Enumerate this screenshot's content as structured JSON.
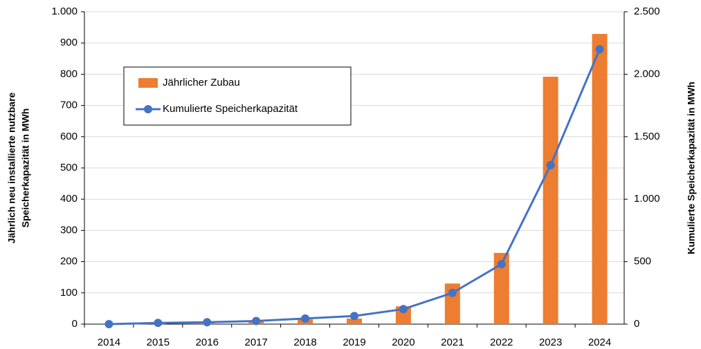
{
  "chart_data": {
    "type": "bar_line",
    "categories": [
      "2014",
      "2015",
      "2016",
      "2017",
      "2018",
      "2019",
      "2020",
      "2021",
      "2022",
      "2023",
      "2024"
    ],
    "series": [
      {
        "name": "Jährlicher Zubau",
        "color": "#ed7d31",
        "type": "bar",
        "axis": "y",
        "values": [
          0,
          2,
          5,
          10,
          15,
          18,
          57,
          130,
          228,
          792,
          929
        ]
      },
      {
        "name": "Kumulierte Speicherkapazität",
        "color": "#4472c4",
        "type": "line",
        "axis": "y2",
        "values": [
          0,
          10,
          15,
          25,
          45,
          65,
          120,
          250,
          480,
          1272,
          2200
        ]
      }
    ],
    "ylabel": [
      "Jährlich neu installierte nutzbare",
      "Speicherkapazität in MWh"
    ],
    "y2label": "Kumulierte Speicherkapazität in MWh",
    "ylim": [
      0,
      1000
    ],
    "yticks": [
      0,
      100,
      200,
      300,
      400,
      500,
      600,
      700,
      800,
      900,
      {
        "value": 1000,
        "label": "1.000"
      }
    ],
    "y2lim": [
      0,
      2500
    ],
    "y2ticks": [
      0,
      500,
      {
        "value": 1000,
        "label": "1.000"
      },
      {
        "value": 1500,
        "label": "1.500"
      },
      {
        "value": 2000,
        "label": "2.000"
      },
      {
        "value": 2500,
        "label": "2.500"
      }
    ],
    "grid": true,
    "legend": "upper left"
  }
}
